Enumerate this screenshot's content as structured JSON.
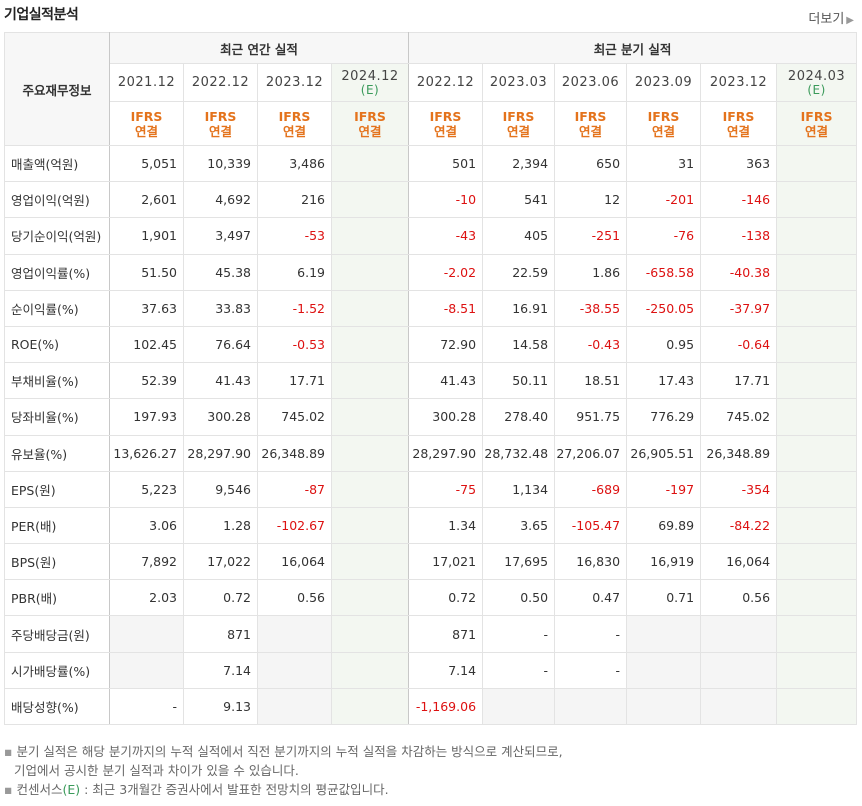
{
  "header": {
    "title": "기업실적분석",
    "more_label": "더보기",
    "more_icon": "chevron-right-icon"
  },
  "table": {
    "corner_label": "주요재무정보",
    "groups": {
      "annual": "최근 연간 실적",
      "quarter": "최근 분기 실적"
    },
    "annual_periods": [
      {
        "label": "2021.12",
        "est": ""
      },
      {
        "label": "2022.12",
        "est": ""
      },
      {
        "label": "2023.12",
        "est": ""
      },
      {
        "label": "2024.12",
        "est": "(E)"
      }
    ],
    "quarter_periods": [
      {
        "label": "2022.12",
        "est": ""
      },
      {
        "label": "2023.03",
        "est": ""
      },
      {
        "label": "2023.06",
        "est": ""
      },
      {
        "label": "2023.09",
        "est": ""
      },
      {
        "label": "2023.12",
        "est": ""
      },
      {
        "label": "2024.03",
        "est": "(E)"
      }
    ],
    "standard": {
      "line1": "IFRS",
      "line2": "연결"
    },
    "rows": [
      {
        "label": "매출액(억원)",
        "values": [
          "5,051",
          "10,339",
          "3,486",
          "",
          "501",
          "2,394",
          "650",
          "31",
          "363",
          ""
        ]
      },
      {
        "label": "영업이익(억원)",
        "values": [
          "2,601",
          "4,692",
          "216",
          "",
          "-10",
          "541",
          "12",
          "-201",
          "-146",
          ""
        ]
      },
      {
        "label": "당기순이익(억원)",
        "values": [
          "1,901",
          "3,497",
          "-53",
          "",
          "-43",
          "405",
          "-251",
          "-76",
          "-138",
          ""
        ]
      },
      {
        "label": "영업이익률(%)",
        "values": [
          "51.50",
          "45.38",
          "6.19",
          "",
          "-2.02",
          "22.59",
          "1.86",
          "-658.58",
          "-40.38",
          ""
        ]
      },
      {
        "label": "순이익률(%)",
        "values": [
          "37.63",
          "33.83",
          "-1.52",
          "",
          "-8.51",
          "16.91",
          "-38.55",
          "-250.05",
          "-37.97",
          ""
        ]
      },
      {
        "label": "ROE(%)",
        "values": [
          "102.45",
          "76.64",
          "-0.53",
          "",
          "72.90",
          "14.58",
          "-0.43",
          "0.95",
          "-0.64",
          ""
        ]
      },
      {
        "label": "부채비율(%)",
        "values": [
          "52.39",
          "41.43",
          "17.71",
          "",
          "41.43",
          "50.11",
          "18.51",
          "17.43",
          "17.71",
          ""
        ]
      },
      {
        "label": "당좌비율(%)",
        "values": [
          "197.93",
          "300.28",
          "745.02",
          "",
          "300.28",
          "278.40",
          "951.75",
          "776.29",
          "745.02",
          ""
        ]
      },
      {
        "label": "유보율(%)",
        "values": [
          "13,626.27",
          "28,297.90",
          "26,348.89",
          "",
          "28,297.90",
          "28,732.48",
          "27,206.07",
          "26,905.51",
          "26,348.89",
          ""
        ]
      },
      {
        "label": "EPS(원)",
        "values": [
          "5,223",
          "9,546",
          "-87",
          "",
          "-75",
          "1,134",
          "-689",
          "-197",
          "-354",
          ""
        ]
      },
      {
        "label": "PER(배)",
        "values": [
          "3.06",
          "1.28",
          "-102.67",
          "",
          "1.34",
          "3.65",
          "-105.47",
          "69.89",
          "-84.22",
          ""
        ]
      },
      {
        "label": "BPS(원)",
        "values": [
          "7,892",
          "17,022",
          "16,064",
          "",
          "17,021",
          "17,695",
          "16,830",
          "16,919",
          "16,064",
          ""
        ]
      },
      {
        "label": "PBR(배)",
        "values": [
          "2.03",
          "0.72",
          "0.56",
          "",
          "0.72",
          "0.50",
          "0.47",
          "0.71",
          "0.56",
          ""
        ]
      },
      {
        "label": "주당배당금(원)",
        "values": [
          "",
          "871",
          "",
          "",
          "871",
          "-",
          "-",
          "",
          "",
          ""
        ]
      },
      {
        "label": "시가배당률(%)",
        "values": [
          "",
          "7.14",
          "",
          "",
          "7.14",
          "-",
          "-",
          "",
          "",
          ""
        ]
      },
      {
        "label": "배당성향(%)",
        "values": [
          "-",
          "9.13",
          "",
          "",
          "-1,169.06",
          "",
          "",
          "",
          "",
          ""
        ]
      }
    ],
    "blank_cells": [
      [
        13,
        0
      ],
      [
        13,
        2
      ],
      [
        14,
        0
      ],
      [
        14,
        2
      ],
      [
        15,
        2
      ],
      [
        13,
        7
      ],
      [
        13,
        8
      ],
      [
        14,
        7
      ],
      [
        14,
        8
      ],
      [
        15,
        5
      ],
      [
        15,
        6
      ],
      [
        15,
        7
      ],
      [
        15,
        8
      ]
    ]
  },
  "notes": {
    "line1": "분기 실적은 해당 분기까지의 누적 실적에서 직전 분기까지의 누적 실적을 차감하는 방식으로 계산되므로,",
    "line2": "기업에서 공시한 분기 실적과 차이가 있을 수 있습니다.",
    "line3_prefix": "컨센서스",
    "line3_mark": "(E)",
    "line3_suffix": " : 최근 3개월간 증권사에서 발표한 전망치의 평균값입니다."
  },
  "colors": {
    "negative": "#dd1111",
    "standard": "#e4731c",
    "estimate": "#3a9a5a",
    "estimate_bg": "#f3f7f1"
  }
}
